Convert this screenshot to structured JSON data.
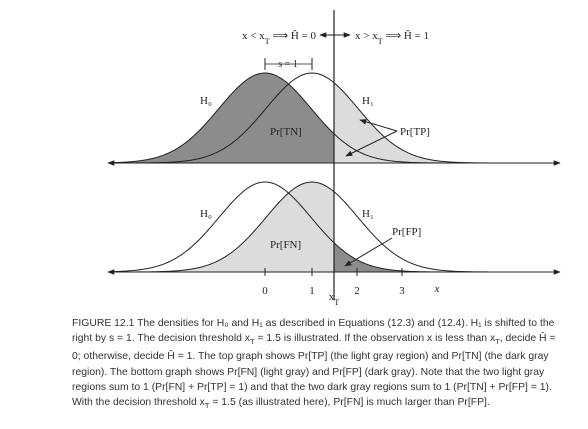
{
  "figure": {
    "left_rule": [
      "x < x",
      {
        "sub": "T"
      },
      " ⟹ Ĥ = 0"
    ],
    "right_rule": [
      "x > x",
      {
        "sub": "T"
      },
      " ⟹ Ĥ = 1"
    ],
    "shift_label": "s = 1",
    "top": {
      "h0": "H₀",
      "h1": "H₁",
      "tn": "Pr[TN]",
      "tp": "Pr[TP]"
    },
    "bottom": {
      "h0": "H₀",
      "h1": "H₁",
      "fn": "Pr[FN]",
      "fp": "Pr[FP]"
    },
    "x_ticks": [
      "0",
      "1",
      "2",
      "3"
    ],
    "threshold_label": [
      "x",
      {
        "sub": "T"
      }
    ],
    "x_label": "x"
  },
  "caption": [
    "FIGURE 12.1 The densities for H₀ and H₁ as described in Equations (12.3) and (12.4). H₁ is shifted to the right by s = 1. The decision threshold x",
    {
      "sub": "T"
    },
    " = 1.5 is illustrated. If the observation x is less than x",
    {
      "sub": "T"
    },
    ", decide Ĥ = 0; otherwise, decide Ĥ = 1. The top graph shows Pr[TP] (the light gray region) and Pr[TN] (the dark gray region). The bottom graph shows Pr[FN] (light gray) and Pr[FP] (dark gray). Note that the two light gray regions sum to 1 (Pr[FN] + Pr[TP] = 1) and that the two dark gray regions sum to 1 (Pr[TN] + Pr[FP] = 1). With the decision threshold x",
    {
      "sub": "T"
    },
    " = 1.5 (as illustrated here), Pr[FN] is much larger than Pr[FP]."
  ]
}
